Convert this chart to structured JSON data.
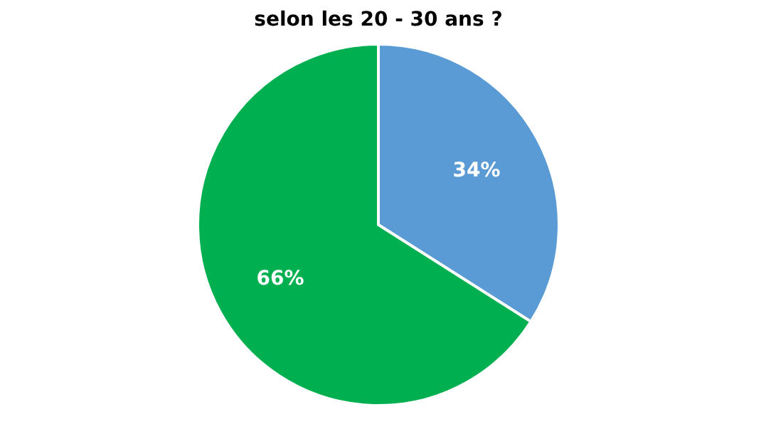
{
  "chart_data": {
    "type": "pie",
    "title": "selon les 20 - 30 ans ?",
    "categories": [
      null,
      null
    ],
    "values": [
      34,
      66
    ],
    "colors": [
      "#5b9bd5",
      "#00b050"
    ],
    "value_labels": [
      "34%",
      "66%"
    ]
  }
}
